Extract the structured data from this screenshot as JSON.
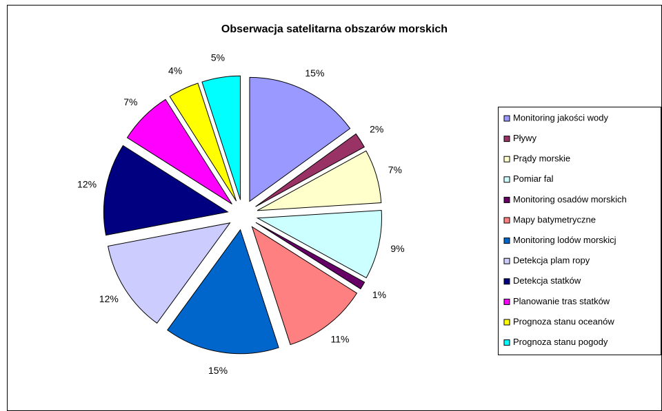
{
  "chart_data": {
    "type": "pie",
    "title": "Obserwacja satelitarna obszarów morskich",
    "categories": [
      "Monitoring jakości wody",
      "Pływy",
      "Prądy morskie",
      "Pomiar fal",
      "Monitoring osadów morskich",
      "Mapy batymetryczne",
      "Monitoring lodów morskicj",
      "Detekcja plam ropy",
      "Detekcja statków",
      "Planowanie tras statków",
      "Prognoza stanu oceanów",
      "Prognoza stanu pogody"
    ],
    "values": [
      15,
      2,
      7,
      9,
      1,
      11,
      15,
      12,
      12,
      7,
      4,
      5
    ],
    "value_labels": [
      "15%",
      "2%",
      "7%",
      "9%",
      "1%",
      "11%",
      "15%",
      "12%",
      "12%",
      "7%",
      "4%",
      "5%"
    ],
    "colors": [
      "#9999ff",
      "#993366",
      "#ffffcc",
      "#ccffff",
      "#660066",
      "#ff8080",
      "#0066cc",
      "#ccccff",
      "#000080",
      "#ff00ff",
      "#ffff00",
      "#00ffff"
    ],
    "legend": "right"
  }
}
